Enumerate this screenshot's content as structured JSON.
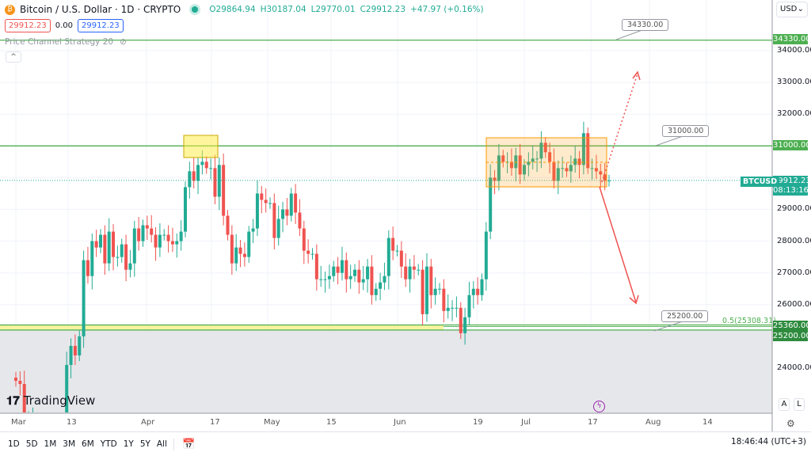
{
  "header": {
    "title": "Bitcoin / U.S. Dollar · 1D · CRYPTO",
    "open": "O29864.94",
    "high": "H30187.04",
    "low": "L29770.01",
    "close": "C29912.23",
    "change": "+47.97 (+0.16%)",
    "sell_price": "29912.23",
    "spread": "0.00",
    "buy_price": "29912.23",
    "indicator": "Price Channel Strategy 20",
    "currency": "USD",
    "coin_icon": "bitcoin-icon",
    "collapse_icon": "chevron-up-icon"
  },
  "price_axis": {
    "labels": [
      "34000.00",
      "33000.00",
      "32000.00",
      "31000.00",
      "29000.00",
      "28000.00",
      "27000.00",
      "26000.00",
      "24000.00"
    ],
    "tags": {
      "l34330": "34330.00",
      "l31000": "31000.00",
      "last": "29912.23",
      "countdown": "08:13:16",
      "symbol": "BTCUSD",
      "l25360": "25360.00",
      "l25200": "25200.00"
    },
    "auto": "A",
    "log": "L"
  },
  "time_axis": [
    "Mar",
    "13",
    "Apr",
    "17",
    "May",
    "15",
    "Jun",
    "19",
    "Jul",
    "17",
    "Aug",
    "14"
  ],
  "annotations": {
    "c34330": "34330.00",
    "c31000": "31000.00",
    "c25200": "25200.00",
    "fib": "0.5(25308.31)"
  },
  "brand": "TradingView",
  "bottom_bar": {
    "ranges": [
      "1D",
      "5D",
      "1M",
      "3M",
      "6M",
      "YTD",
      "1Y",
      "5Y",
      "All"
    ],
    "clock": "18:46:44 (UTC+3)"
  },
  "colors": {
    "up": "#22ab94",
    "down": "#ef5350",
    "level": "#4caf50",
    "channel": "#ff9800",
    "accent": "#2962ff"
  },
  "chart_data": {
    "type": "candlestick",
    "ylim": [
      23000,
      34500
    ],
    "levels": [
      34330,
      31000,
      25360,
      25200
    ],
    "closes": {
      "Mar": [
        23600,
        23500,
        22400,
        22400,
        22400,
        22200,
        22100,
        21700,
        20400,
        20200,
        20600,
        22100,
        24100,
        24700,
        24400,
        25000,
        27400,
        26900,
        28000,
        27800,
        28200,
        27300,
        28300,
        27500,
        27500,
        27900,
        27100,
        27300,
        28400,
        28000,
        28500
      ],
      "Apr": [
        28400,
        28200,
        27800,
        28200,
        28200,
        28000,
        27900,
        28000,
        28300,
        29700,
        30200,
        29900,
        30400,
        30500,
        30300,
        30300,
        29400,
        30400,
        28800,
        28200,
        27300,
        27800,
        27600,
        27500,
        28300,
        28400,
        29500,
        29300,
        29200,
        29200
      ],
      "May": [
        28100,
        28700,
        29000,
        28800,
        29500,
        28900,
        28400,
        27700,
        27600,
        27600,
        26800,
        26800,
        26800,
        26900,
        27200,
        27000,
        27400,
        26800,
        26900,
        27100,
        26700,
        26800,
        27200,
        26300,
        26500,
        26700,
        26900,
        28100,
        27700,
        27700,
        27200
      ],
      "Jun": [
        26800,
        27200,
        27100,
        27100,
        25700,
        27200,
        26300,
        26500,
        26500,
        25800,
        25900,
        25900,
        25900,
        25100,
        25600,
        26300,
        26500,
        26300,
        26800,
        28300,
        30000,
        29900,
        30700,
        30500,
        30500,
        30300,
        30700,
        30100,
        30400,
        30500
      ],
      "Jul": [
        30600,
        30600,
        31100,
        30800,
        30500,
        29900,
        30300,
        30300,
        30200,
        30400,
        30600,
        30400,
        31400,
        30300,
        30300,
        30200,
        30100,
        29900,
        29912.23
      ]
    }
  }
}
